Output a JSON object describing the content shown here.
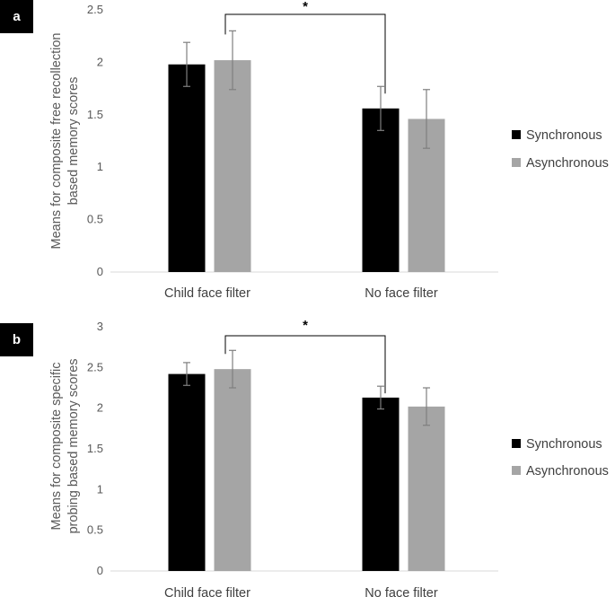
{
  "chart_data": [
    {
      "panel_label": "a",
      "type": "bar",
      "ylabel_lines": [
        "Means for composite free recollection",
        "based memory scores"
      ],
      "ylim": [
        0,
        2.5
      ],
      "yticks": [
        "0",
        "0.5",
        "1",
        "1.5",
        "2",
        "2.5"
      ],
      "ytick_values": [
        0,
        0.5,
        1,
        1.5,
        2,
        2.5
      ],
      "categories": [
        "Child face filter",
        "No face filter"
      ],
      "series": [
        {
          "name": "Synchronous",
          "color": "#000000",
          "values": [
            1.98,
            1.56
          ],
          "errors": [
            0.21,
            0.21
          ]
        },
        {
          "name": "Asynchronous",
          "color": "#a5a5a5",
          "values": [
            2.02,
            1.46
          ],
          "errors": [
            0.28,
            0.28
          ]
        }
      ],
      "significance": "*",
      "legend_position": "right"
    },
    {
      "panel_label": "b",
      "type": "bar",
      "ylabel_lines": [
        "Means for composite specific",
        "probing based memory scores"
      ],
      "ylim": [
        0,
        3
      ],
      "yticks": [
        "0",
        "0.5",
        "1",
        "1.5",
        "2",
        "2.5",
        "3"
      ],
      "ytick_values": [
        0,
        0.5,
        1,
        1.5,
        2,
        2.5,
        3
      ],
      "categories": [
        "Child face filter",
        "No face filter"
      ],
      "series": [
        {
          "name": "Synchronous",
          "color": "#000000",
          "values": [
            2.42,
            2.13
          ],
          "errors": [
            0.14,
            0.14
          ]
        },
        {
          "name": "Asynchronous",
          "color": "#a5a5a5",
          "values": [
            2.48,
            2.02
          ],
          "errors": [
            0.23,
            0.23
          ]
        }
      ],
      "significance": "*",
      "legend_position": "right"
    }
  ]
}
